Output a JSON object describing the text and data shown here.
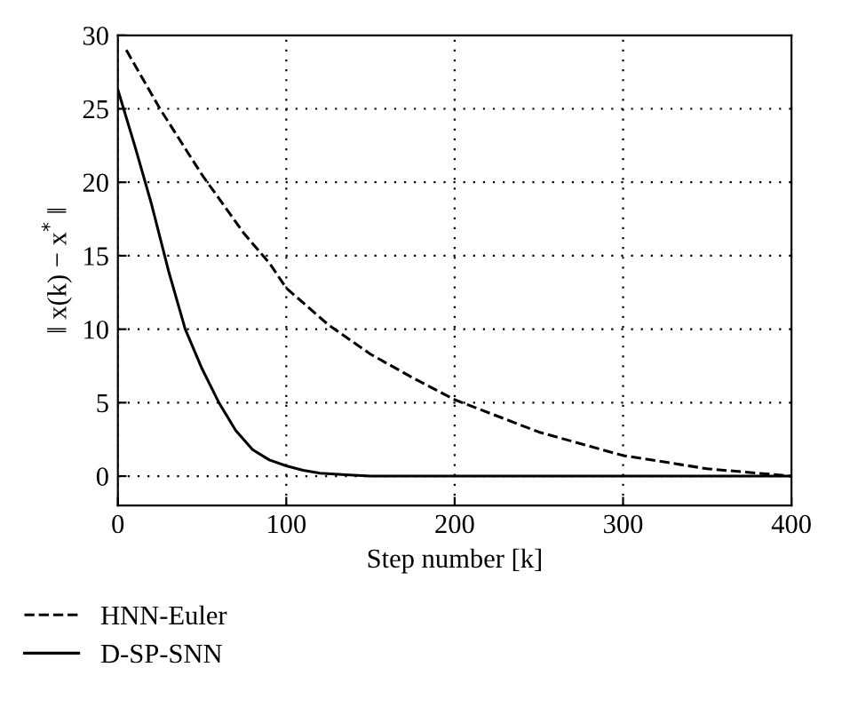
{
  "chart_data": {
    "type": "line",
    "xlabel": "Step number [k]",
    "ylabel": "‖ x(k) − x$^{*}$ ‖",
    "xlim": [
      0,
      400
    ],
    "ylim": [
      -2,
      30
    ],
    "xticks": [
      0,
      100,
      200,
      300,
      400
    ],
    "yticks": [
      0,
      5,
      10,
      15,
      20,
      25,
      30
    ],
    "grid": true,
    "legend": "bottom left",
    "marker": "none",
    "series": [
      {
        "name": "HNN-Euler",
        "color": "#000000",
        "line_style": "dashed",
        "x": [
          5,
          25,
          50,
          75,
          90,
          100,
          125,
          150,
          175,
          200,
          250,
          300,
          350,
          380,
          400
        ],
        "values": [
          29,
          25,
          20.5,
          16.5,
          14.5,
          12.8,
          10.3,
          8.3,
          6.7,
          5.2,
          3.0,
          1.4,
          0.5,
          0.2,
          0
        ]
      },
      {
        "name": "D-SP-SNN",
        "color": "#000000",
        "line_style": "solid",
        "x": [
          0,
          10,
          20,
          30,
          40,
          50,
          60,
          70,
          80,
          90,
          100,
          110,
          120,
          135,
          150,
          200,
          300,
          400
        ],
        "values": [
          26.3,
          22.5,
          18.5,
          14,
          10,
          7.3,
          5,
          3.1,
          1.8,
          1.1,
          0.7,
          0.4,
          0.2,
          0.1,
          0,
          0,
          0,
          0
        ]
      }
    ]
  }
}
